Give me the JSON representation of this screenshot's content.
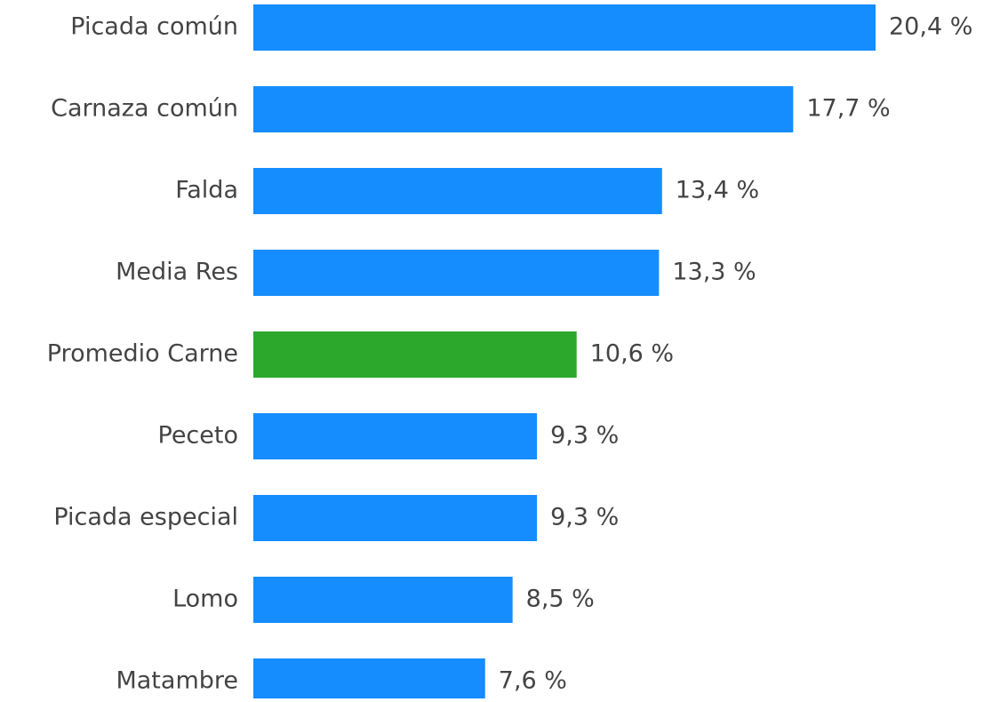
{
  "chart_data": {
    "type": "bar",
    "orientation": "horizontal",
    "categories": [
      "Picada común",
      "Carnaza común",
      "Falda",
      "Media Res",
      "Promedio Carne",
      "Peceto",
      "Picada especial",
      "Lomo",
      "Matambre"
    ],
    "values": [
      20.4,
      17.7,
      13.4,
      13.3,
      10.6,
      9.3,
      9.3,
      8.5,
      7.6
    ],
    "value_labels": [
      "20,4 %",
      "17,7 %",
      "13,4 %",
      "13,3 %",
      "10,6 %",
      "9,3 %",
      "9,3 %",
      "8,5 %",
      "7,6 %"
    ],
    "colors": [
      "#168dff",
      "#168dff",
      "#168dff",
      "#168dff",
      "#2ca82c",
      "#168dff",
      "#168dff",
      "#168dff",
      "#168dff"
    ]
  }
}
